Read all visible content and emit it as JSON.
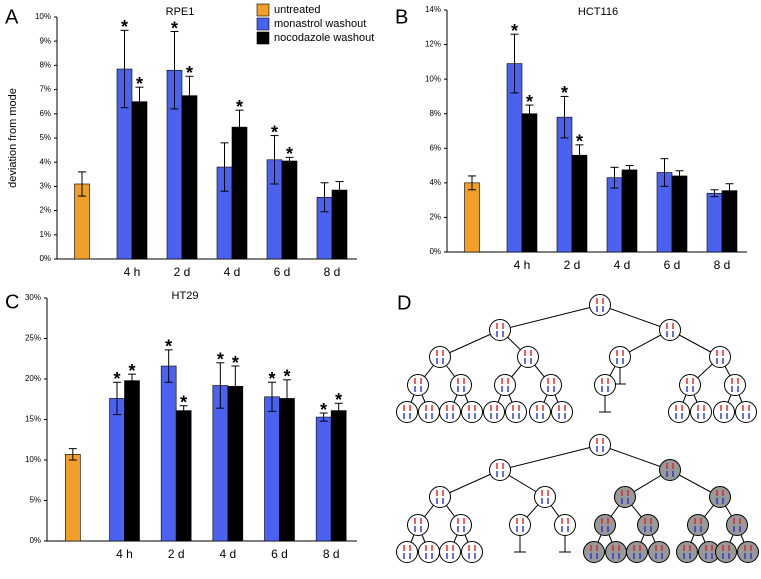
{
  "chart_data": [
    {
      "type": "bar",
      "panel": "A",
      "title": "RPE1",
      "y_label": "deviation from mode",
      "categories": [
        null,
        "4 h",
        "2 d",
        "4 d",
        "6 d",
        "8 d"
      ],
      "ylim": [
        0,
        10
      ],
      "yticks": [
        {
          "value": 0,
          "label": "0%"
        },
        {
          "value": 1,
          "label": "1%"
        },
        {
          "value": 2,
          "label": "2%"
        },
        {
          "value": 3,
          "label": "3%"
        },
        {
          "value": 4,
          "label": "4%"
        },
        {
          "value": 5,
          "label": "5%"
        },
        {
          "value": 6,
          "label": "6%"
        },
        {
          "value": 7,
          "label": "7%"
        },
        {
          "value": 8,
          "label": "8%"
        },
        {
          "value": 9,
          "label": "9%"
        },
        {
          "value": 10,
          "label": "10%"
        }
      ],
      "legend": "top-right",
      "series": [
        {
          "name": "untreated",
          "color": "#f0a02a",
          "values": [
            3.1,
            null,
            null,
            null,
            null,
            null
          ],
          "errors": [
            0.5,
            null,
            null,
            null,
            null,
            null
          ],
          "significance": [
            null,
            null,
            null,
            null,
            null,
            null
          ]
        },
        {
          "name": "monastrol washout",
          "color": "#4a62ef",
          "values": [
            null,
            7.85,
            7.8,
            3.8,
            4.1,
            2.55
          ],
          "errors": [
            null,
            1.6,
            1.6,
            1.0,
            1.0,
            0.6
          ],
          "significance": [
            null,
            "*",
            "*",
            null,
            "*",
            null
          ]
        },
        {
          "name": "nocodazole washout",
          "color": "#000000",
          "values": [
            null,
            6.5,
            6.75,
            5.45,
            4.05,
            2.85
          ],
          "errors": [
            null,
            0.6,
            0.8,
            0.7,
            0.15,
            0.35
          ],
          "significance": [
            null,
            "*",
            "*",
            "*",
            "*",
            null
          ]
        }
      ]
    },
    {
      "type": "bar",
      "panel": "B",
      "title": "HCT116",
      "categories": [
        null,
        "4 h",
        "2 d",
        "4 d",
        "6 d",
        "8 d"
      ],
      "ylim": [
        0,
        14
      ],
      "yticks": [
        {
          "value": 0,
          "label": "0%"
        },
        {
          "value": 2,
          "label": "2%"
        },
        {
          "value": 4,
          "label": "4%"
        },
        {
          "value": 6,
          "label": "6%"
        },
        {
          "value": 8,
          "label": "8%"
        },
        {
          "value": 10,
          "label": "10%"
        },
        {
          "value": 12,
          "label": "12%"
        },
        {
          "value": 14,
          "label": "14%"
        }
      ],
      "legend": false,
      "series": [
        {
          "color": "#f0a02a",
          "values": [
            4.0,
            null,
            null,
            null,
            null,
            null
          ],
          "errors": [
            0.4,
            null,
            null,
            null,
            null,
            null
          ],
          "significance": [
            null,
            null,
            null,
            null,
            null,
            null
          ]
        },
        {
          "color": "#4a62ef",
          "values": [
            null,
            10.9,
            7.8,
            4.3,
            4.6,
            3.4
          ],
          "errors": [
            null,
            1.7,
            1.2,
            0.6,
            0.8,
            0.2
          ],
          "significance": [
            null,
            "*",
            "*",
            null,
            null,
            null
          ]
        },
        {
          "color": "#000000",
          "values": [
            null,
            8.0,
            5.6,
            4.75,
            4.4,
            3.55
          ],
          "errors": [
            null,
            0.5,
            0.6,
            0.25,
            0.3,
            0.4
          ],
          "significance": [
            null,
            "*",
            "*",
            null,
            null,
            null
          ]
        }
      ]
    },
    {
      "type": "bar",
      "panel": "C",
      "title": "HT29",
      "categories": [
        null,
        "4 h",
        "2 d",
        "4 d",
        "6 d",
        "8 d"
      ],
      "ylim": [
        0,
        30
      ],
      "yticks": [
        {
          "value": 0,
          "label": "0%"
        },
        {
          "value": 5,
          "label": "5%"
        },
        {
          "value": 10,
          "label": "10%"
        },
        {
          "value": 15,
          "label": "15%"
        },
        {
          "value": 20,
          "label": "20%"
        },
        {
          "value": 25,
          "label": "25%"
        },
        {
          "value": 30,
          "label": "30%"
        }
      ],
      "legend": false,
      "series": [
        {
          "color": "#f0a02a",
          "values": [
            10.7,
            null,
            null,
            null,
            null,
            null
          ],
          "errors": [
            0.7,
            null,
            null,
            null,
            null,
            null
          ],
          "significance": [
            null,
            null,
            null,
            null,
            null,
            null
          ]
        },
        {
          "color": "#4a62ef",
          "values": [
            null,
            17.6,
            21.6,
            19.2,
            17.8,
            15.3
          ],
          "errors": [
            null,
            2.0,
            2.0,
            2.8,
            1.8,
            0.5
          ],
          "significance": [
            null,
            "*",
            "*",
            "*",
            "*",
            "*"
          ]
        },
        {
          "color": "#000000",
          "values": [
            null,
            19.8,
            16.1,
            19.1,
            17.6,
            16.1
          ],
          "errors": [
            null,
            0.8,
            0.6,
            2.5,
            2.3,
            0.9
          ],
          "significance": [
            null,
            "*",
            "*",
            "*",
            "*",
            "*"
          ]
        }
      ]
    }
  ],
  "diagram": {
    "panel": "D"
  }
}
